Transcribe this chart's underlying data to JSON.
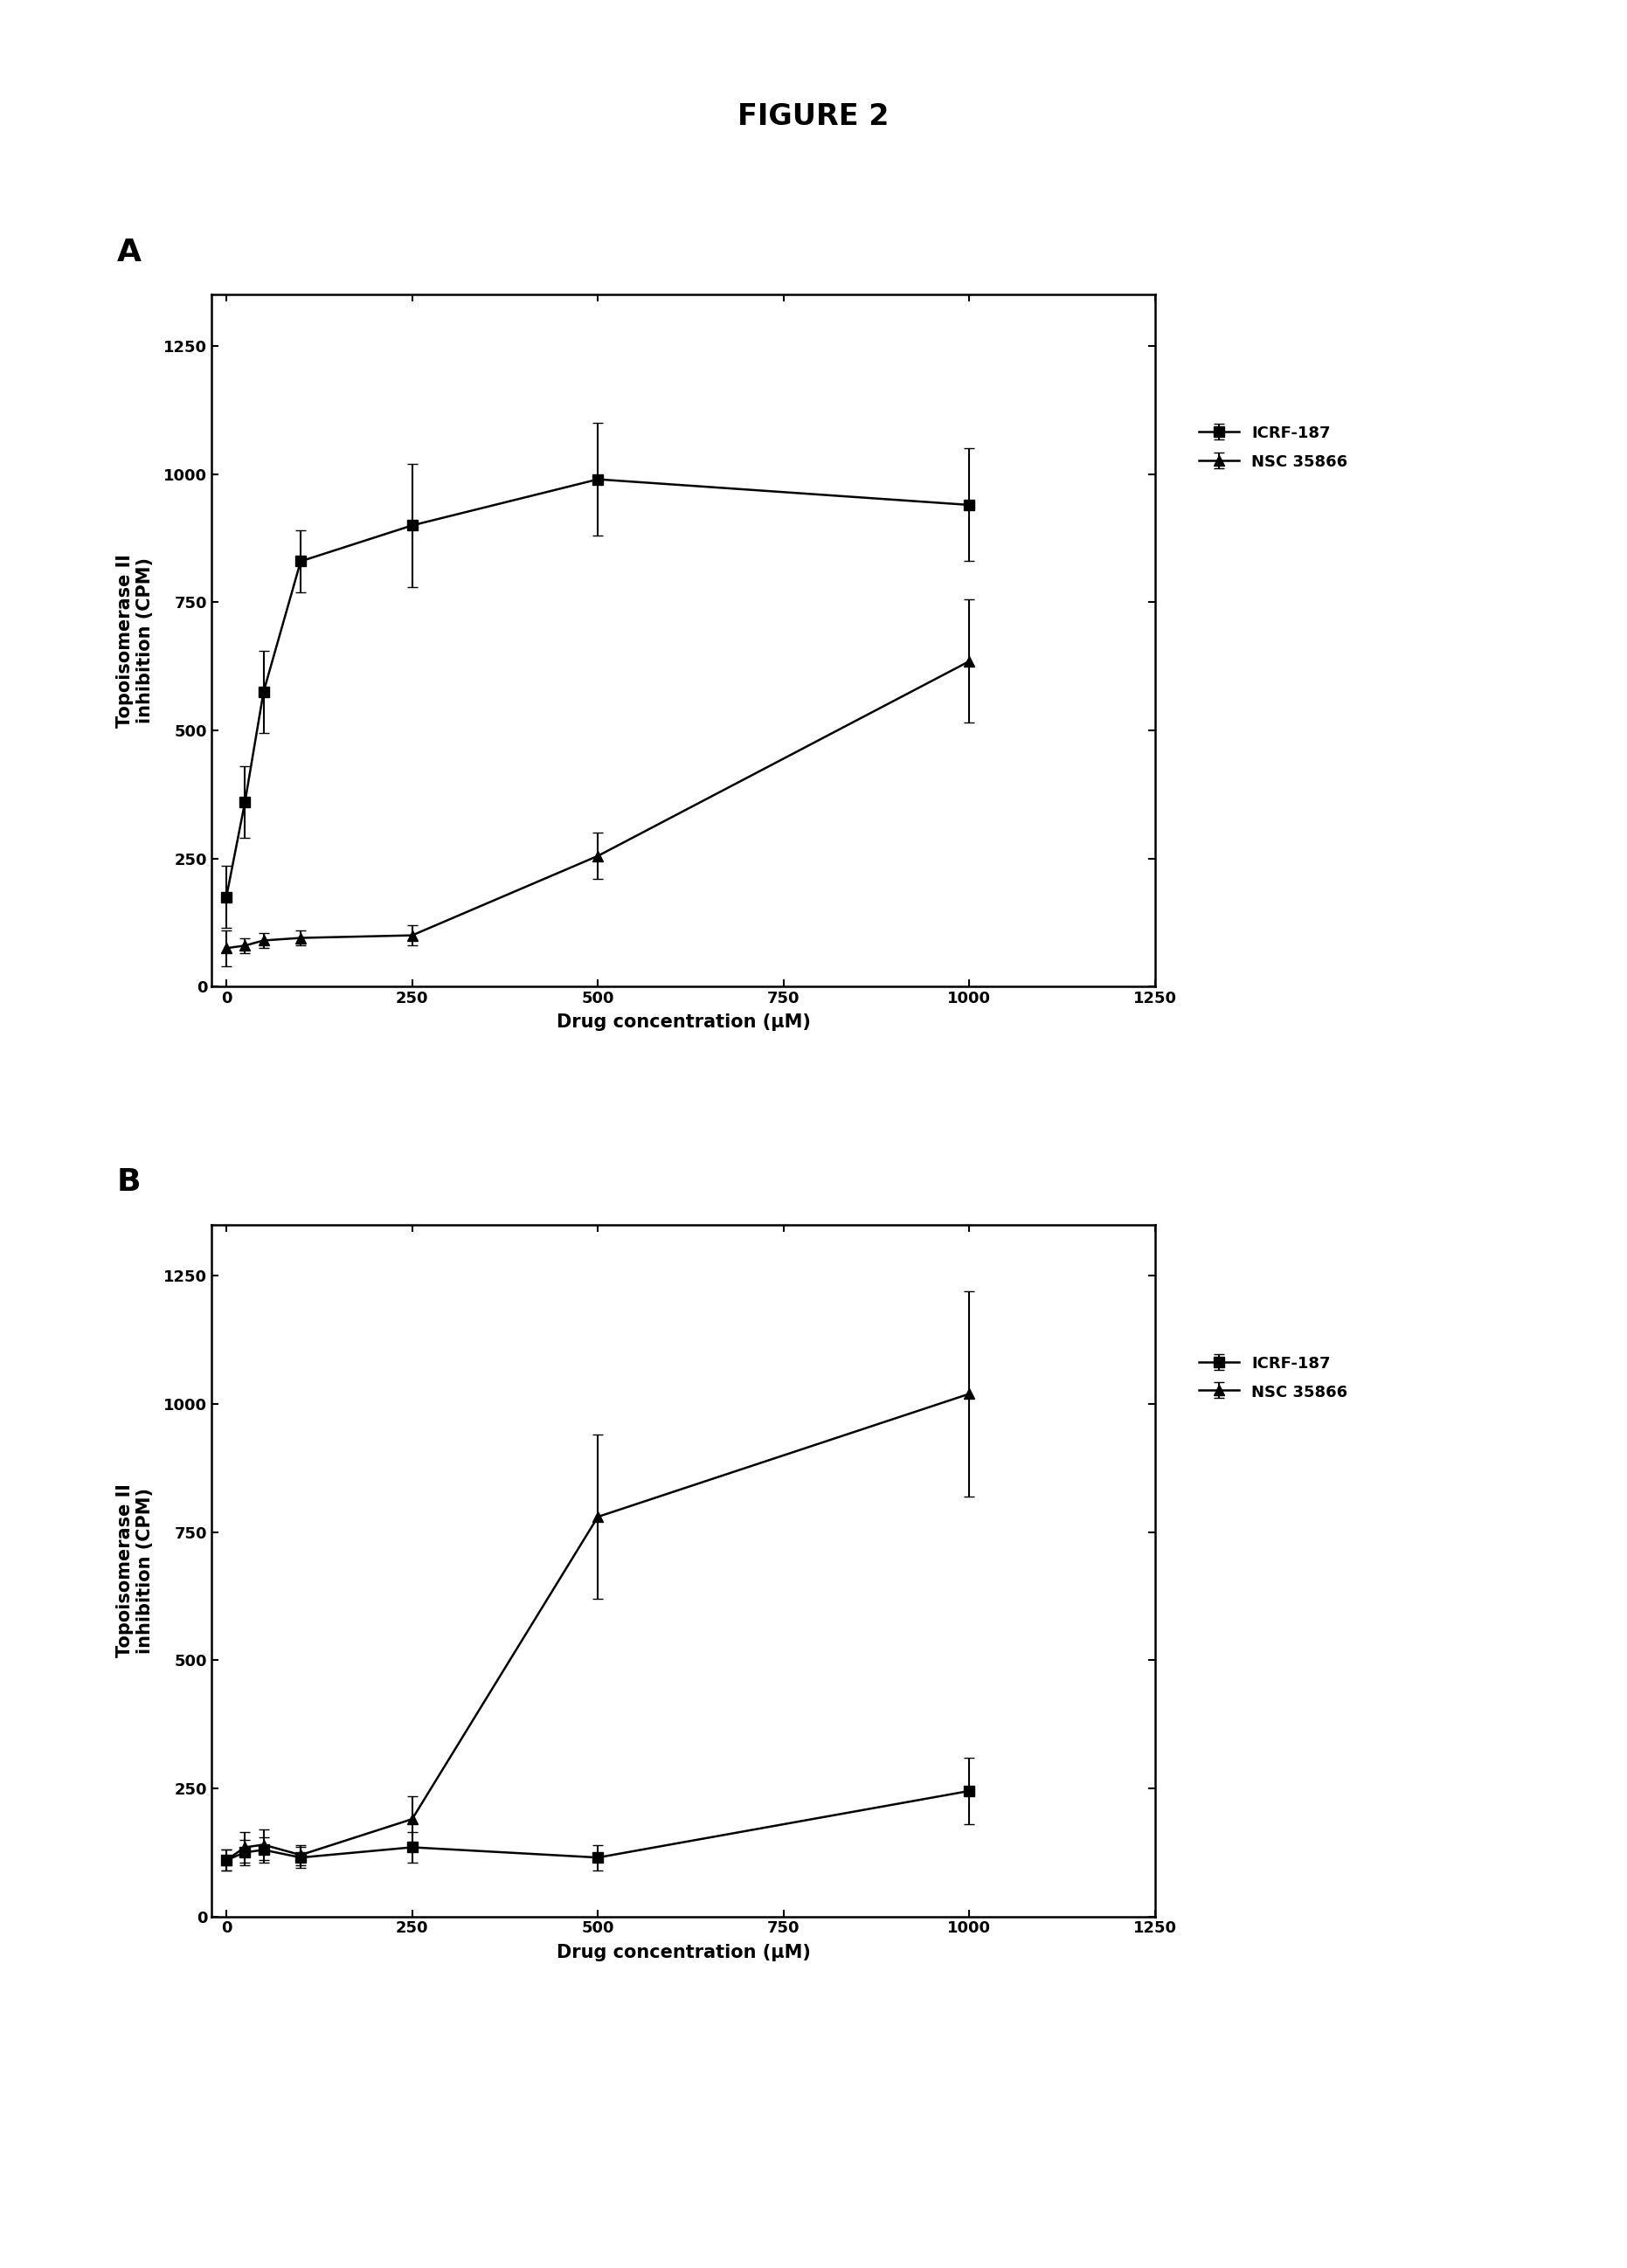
{
  "fig_title": "FIGURE 2",
  "panel_A": {
    "label": "A",
    "icrf187": {
      "x": [
        0,
        25,
        50,
        100,
        250,
        500,
        1000
      ],
      "y": [
        175,
        360,
        575,
        830,
        900,
        990,
        940
      ],
      "yerr": [
        60,
        70,
        80,
        60,
        120,
        110,
        110
      ]
    },
    "nsc35866": {
      "x": [
        0,
        25,
        50,
        100,
        250,
        500,
        1000
      ],
      "y": [
        75,
        80,
        90,
        95,
        100,
        255,
        635
      ],
      "yerr": [
        35,
        15,
        15,
        15,
        20,
        45,
        120
      ]
    },
    "xlim": [
      -20,
      1250
    ],
    "ylim": [
      0,
      1350
    ],
    "xticks": [
      0,
      250,
      500,
      750,
      1000,
      1250
    ],
    "yticks": [
      0,
      250,
      500,
      750,
      1000,
      1250
    ],
    "xlabel": "Drug concentration (μM)",
    "ylabel": "Topoisomerase II\ninhibition (CPM)"
  },
  "panel_B": {
    "label": "B",
    "icrf187": {
      "x": [
        0,
        25,
        50,
        100,
        250,
        500,
        1000
      ],
      "y": [
        110,
        125,
        130,
        115,
        135,
        115,
        245
      ],
      "yerr": [
        20,
        25,
        25,
        20,
        30,
        25,
        65
      ]
    },
    "nsc35866": {
      "x": [
        0,
        25,
        50,
        100,
        250,
        500,
        1000
      ],
      "y": [
        110,
        135,
        140,
        120,
        190,
        780,
        1020
      ],
      "yerr": [
        20,
        30,
        30,
        20,
        45,
        160,
        200
      ]
    },
    "xlim": [
      -20,
      1250
    ],
    "ylim": [
      0,
      1350
    ],
    "xticks": [
      0,
      250,
      500,
      750,
      1000,
      1250
    ],
    "yticks": [
      0,
      250,
      500,
      750,
      1000,
      1250
    ],
    "xlabel": "Drug concentration (μM)",
    "ylabel": "Topoisomerase II\ninhibition (CPM)"
  },
  "legend_icrf": "ICRF-187",
  "legend_nsc": "NSC 35866",
  "line_color": "#000000",
  "marker_square": "s",
  "marker_triangle": "^",
  "markersize": 8,
  "linewidth": 1.8,
  "capsize": 4,
  "elinewidth": 1.5,
  "bg_color": "#ffffff"
}
